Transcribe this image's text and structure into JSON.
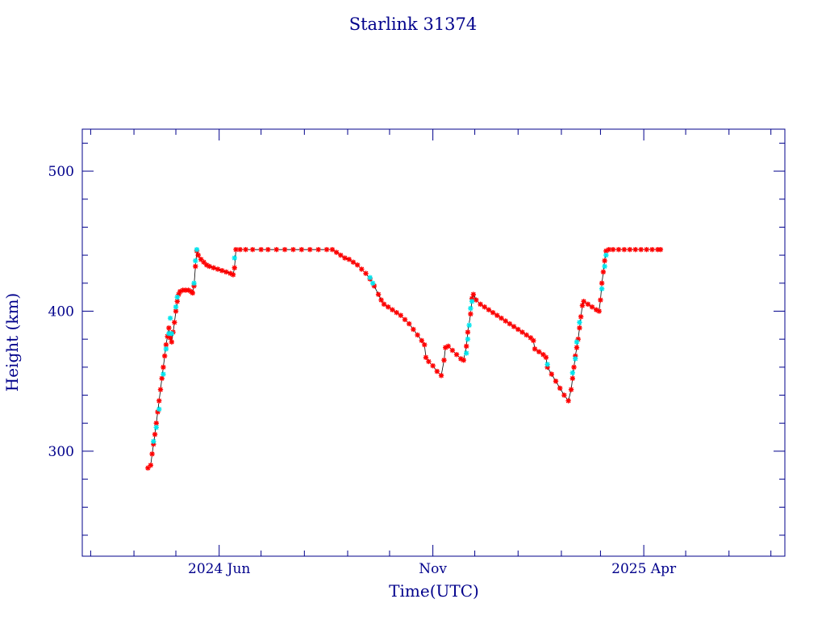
{
  "colors": {
    "axis": "#00008b",
    "text": "#00008b",
    "series_main": "#ff0000",
    "series_alt": "#00e5ee",
    "connector": "#000000",
    "background": "#ffffff"
  },
  "chart_data": {
    "type": "scatter",
    "title": "Starlink 31374",
    "xlabel": "Time(UTC)",
    "ylabel": "Height (km)",
    "x_unit": "days",
    "xlim": [
      "2024-02-24",
      "2025-07-11"
    ],
    "ylim": [
      225,
      530
    ],
    "x_ticks": [
      {
        "date": "2024-06-01",
        "label": "2024 Jun"
      },
      {
        "date": "2024-11-01",
        "label": "Nov"
      },
      {
        "date": "2025-04-01",
        "label": "2025 Apr"
      }
    ],
    "x_minor_ticks": [
      "2024-03-01",
      "2024-04-01",
      "2024-05-01",
      "2024-07-01",
      "2024-08-01",
      "2024-09-01",
      "2024-10-01",
      "2024-12-01",
      "2025-01-01",
      "2025-02-01",
      "2025-03-01",
      "2025-05-01",
      "2025-06-01",
      "2025-07-01"
    ],
    "y_ticks": [
      300,
      400,
      500
    ],
    "y_minor_step": 20,
    "grid": false,
    "series": [
      {
        "color": "#ff0000",
        "marker": "star",
        "points": [
          [
            "2024-04-11",
            288
          ],
          [
            "2024-04-13",
            290
          ],
          [
            "2024-04-14",
            298
          ],
          [
            "2024-04-15",
            305
          ],
          [
            "2024-04-16",
            312
          ],
          [
            "2024-04-17",
            320
          ],
          [
            "2024-04-18",
            328
          ],
          [
            "2024-04-19",
            336
          ],
          [
            "2024-04-20",
            344
          ],
          [
            "2024-04-21",
            352
          ],
          [
            "2024-04-22",
            360
          ],
          [
            "2024-04-23",
            368
          ],
          [
            "2024-04-24",
            376
          ],
          [
            "2024-04-25",
            382
          ],
          [
            "2024-04-26",
            388
          ],
          [
            "2024-04-27",
            381
          ],
          [
            "2024-04-28",
            378
          ],
          [
            "2024-04-29",
            385
          ],
          [
            "2024-04-30",
            392
          ],
          [
            "2024-05-01",
            400
          ],
          [
            "2024-05-02",
            407
          ],
          [
            "2024-05-03",
            412
          ],
          [
            "2024-05-04",
            414
          ],
          [
            "2024-05-06",
            415
          ],
          [
            "2024-05-08",
            415
          ],
          [
            "2024-05-10",
            415
          ],
          [
            "2024-05-12",
            414
          ],
          [
            "2024-05-13",
            413
          ],
          [
            "2024-05-14",
            418
          ],
          [
            "2024-05-15",
            432
          ],
          [
            "2024-05-16",
            443
          ],
          [
            "2024-05-17",
            440
          ],
          [
            "2024-05-19",
            437
          ],
          [
            "2024-05-21",
            435
          ],
          [
            "2024-05-23",
            433
          ],
          [
            "2024-05-25",
            432
          ],
          [
            "2024-05-28",
            431
          ],
          [
            "2024-05-31",
            430
          ],
          [
            "2024-06-03",
            429
          ],
          [
            "2024-06-06",
            428
          ],
          [
            "2024-06-09",
            427
          ],
          [
            "2024-06-11",
            426
          ],
          [
            "2024-06-12",
            431
          ],
          [
            "2024-06-13",
            444
          ],
          [
            "2024-06-16",
            444
          ],
          [
            "2024-06-20",
            444
          ],
          [
            "2024-06-25",
            444
          ],
          [
            "2024-07-01",
            444
          ],
          [
            "2024-07-06",
            444
          ],
          [
            "2024-07-12",
            444
          ],
          [
            "2024-07-18",
            444
          ],
          [
            "2024-07-24",
            444
          ],
          [
            "2024-07-30",
            444
          ],
          [
            "2024-08-05",
            444
          ],
          [
            "2024-08-11",
            444
          ],
          [
            "2024-08-17",
            444
          ],
          [
            "2024-08-21",
            444
          ],
          [
            "2024-08-24",
            442
          ],
          [
            "2024-08-27",
            440
          ],
          [
            "2024-08-30",
            438
          ],
          [
            "2024-09-02",
            437
          ],
          [
            "2024-09-05",
            435
          ],
          [
            "2024-09-08",
            433
          ],
          [
            "2024-09-11",
            430
          ],
          [
            "2024-09-14",
            427
          ],
          [
            "2024-09-17",
            423
          ],
          [
            "2024-09-20",
            418
          ],
          [
            "2024-09-23",
            412
          ],
          [
            "2024-09-25",
            408
          ],
          [
            "2024-09-27",
            405
          ],
          [
            "2024-09-30",
            403
          ],
          [
            "2024-10-03",
            401
          ],
          [
            "2024-10-06",
            399
          ],
          [
            "2024-10-09",
            397
          ],
          [
            "2024-10-12",
            394
          ],
          [
            "2024-10-15",
            391
          ],
          [
            "2024-10-18",
            387
          ],
          [
            "2024-10-21",
            383
          ],
          [
            "2024-10-24",
            379
          ],
          [
            "2024-10-26",
            376
          ],
          [
            "2024-10-27",
            367
          ],
          [
            "2024-10-29",
            364
          ],
          [
            "2024-11-01",
            361
          ],
          [
            "2024-11-04",
            357
          ],
          [
            "2024-11-07",
            354
          ],
          [
            "2024-11-09",
            365
          ],
          [
            "2024-11-10",
            374
          ],
          [
            "2024-11-12",
            375
          ],
          [
            "2024-11-15",
            372
          ],
          [
            "2024-11-18",
            369
          ],
          [
            "2024-11-21",
            366
          ],
          [
            "2024-11-23",
            365
          ],
          [
            "2024-11-25",
            375
          ],
          [
            "2024-11-26",
            385
          ],
          [
            "2024-11-28",
            398
          ],
          [
            "2024-11-29",
            409
          ],
          [
            "2024-11-30",
            412
          ],
          [
            "2024-12-02",
            408
          ],
          [
            "2024-12-05",
            405
          ],
          [
            "2024-12-08",
            403
          ],
          [
            "2024-12-11",
            401
          ],
          [
            "2024-12-14",
            399
          ],
          [
            "2024-12-17",
            397
          ],
          [
            "2024-12-20",
            395
          ],
          [
            "2024-12-23",
            393
          ],
          [
            "2024-12-26",
            391
          ],
          [
            "2024-12-29",
            389
          ],
          [
            "2025-01-01",
            387
          ],
          [
            "2025-01-04",
            385
          ],
          [
            "2025-01-07",
            383
          ],
          [
            "2025-01-10",
            381
          ],
          [
            "2025-01-12",
            379
          ],
          [
            "2025-01-13",
            373
          ],
          [
            "2025-01-16",
            371
          ],
          [
            "2025-01-19",
            369
          ],
          [
            "2025-01-21",
            367
          ],
          [
            "2025-01-22",
            360
          ],
          [
            "2025-01-25",
            355
          ],
          [
            "2025-01-28",
            350
          ],
          [
            "2025-01-31",
            345
          ],
          [
            "2025-02-03",
            340
          ],
          [
            "2025-02-06",
            336
          ],
          [
            "2025-02-08",
            344
          ],
          [
            "2025-02-09",
            352
          ],
          [
            "2025-02-10",
            360
          ],
          [
            "2025-02-11",
            368
          ],
          [
            "2025-02-12",
            374
          ],
          [
            "2025-02-13",
            380
          ],
          [
            "2025-02-14",
            388
          ],
          [
            "2025-02-15",
            396
          ],
          [
            "2025-02-16",
            404
          ],
          [
            "2025-02-17",
            407
          ],
          [
            "2025-02-20",
            405
          ],
          [
            "2025-02-23",
            403
          ],
          [
            "2025-02-26",
            401
          ],
          [
            "2025-02-28",
            400
          ],
          [
            "2025-03-01",
            408
          ],
          [
            "2025-03-02",
            420
          ],
          [
            "2025-03-03",
            428
          ],
          [
            "2025-03-04",
            436
          ],
          [
            "2025-03-05",
            443
          ],
          [
            "2025-03-07",
            444
          ],
          [
            "2025-03-10",
            444
          ],
          [
            "2025-03-14",
            444
          ],
          [
            "2025-03-18",
            444
          ],
          [
            "2025-03-22",
            444
          ],
          [
            "2025-03-26",
            444
          ],
          [
            "2025-03-30",
            444
          ],
          [
            "2025-04-03",
            444
          ],
          [
            "2025-04-07",
            444
          ],
          [
            "2025-04-11",
            444
          ],
          [
            "2025-04-13",
            444
          ]
        ]
      },
      {
        "color": "#00e5ee",
        "marker": "star",
        "points": [
          [
            "2024-04-15",
            307
          ],
          [
            "2024-04-17",
            317
          ],
          [
            "2024-04-19",
            330
          ],
          [
            "2024-04-22",
            355
          ],
          [
            "2024-04-24",
            373
          ],
          [
            "2024-04-26",
            384
          ],
          [
            "2024-04-27",
            395
          ],
          [
            "2024-04-28",
            384
          ],
          [
            "2024-05-01",
            403
          ],
          [
            "2024-05-02",
            410
          ],
          [
            "2024-05-14",
            420
          ],
          [
            "2024-05-15",
            436
          ],
          [
            "2024-05-16",
            444
          ],
          [
            "2024-06-12",
            438
          ],
          [
            "2024-09-17",
            424
          ],
          [
            "2024-09-19",
            420
          ],
          [
            "2024-11-25",
            370
          ],
          [
            "2024-11-26",
            380
          ],
          [
            "2024-11-27",
            390
          ],
          [
            "2024-11-28",
            402
          ],
          [
            "2024-11-29",
            407
          ],
          [
            "2025-01-22",
            362
          ],
          [
            "2025-02-09",
            356
          ],
          [
            "2025-02-11",
            366
          ],
          [
            "2025-02-12",
            378
          ],
          [
            "2025-02-14",
            392
          ],
          [
            "2025-03-02",
            416
          ],
          [
            "2025-03-04",
            432
          ],
          [
            "2025-03-05",
            440
          ]
        ]
      }
    ]
  }
}
